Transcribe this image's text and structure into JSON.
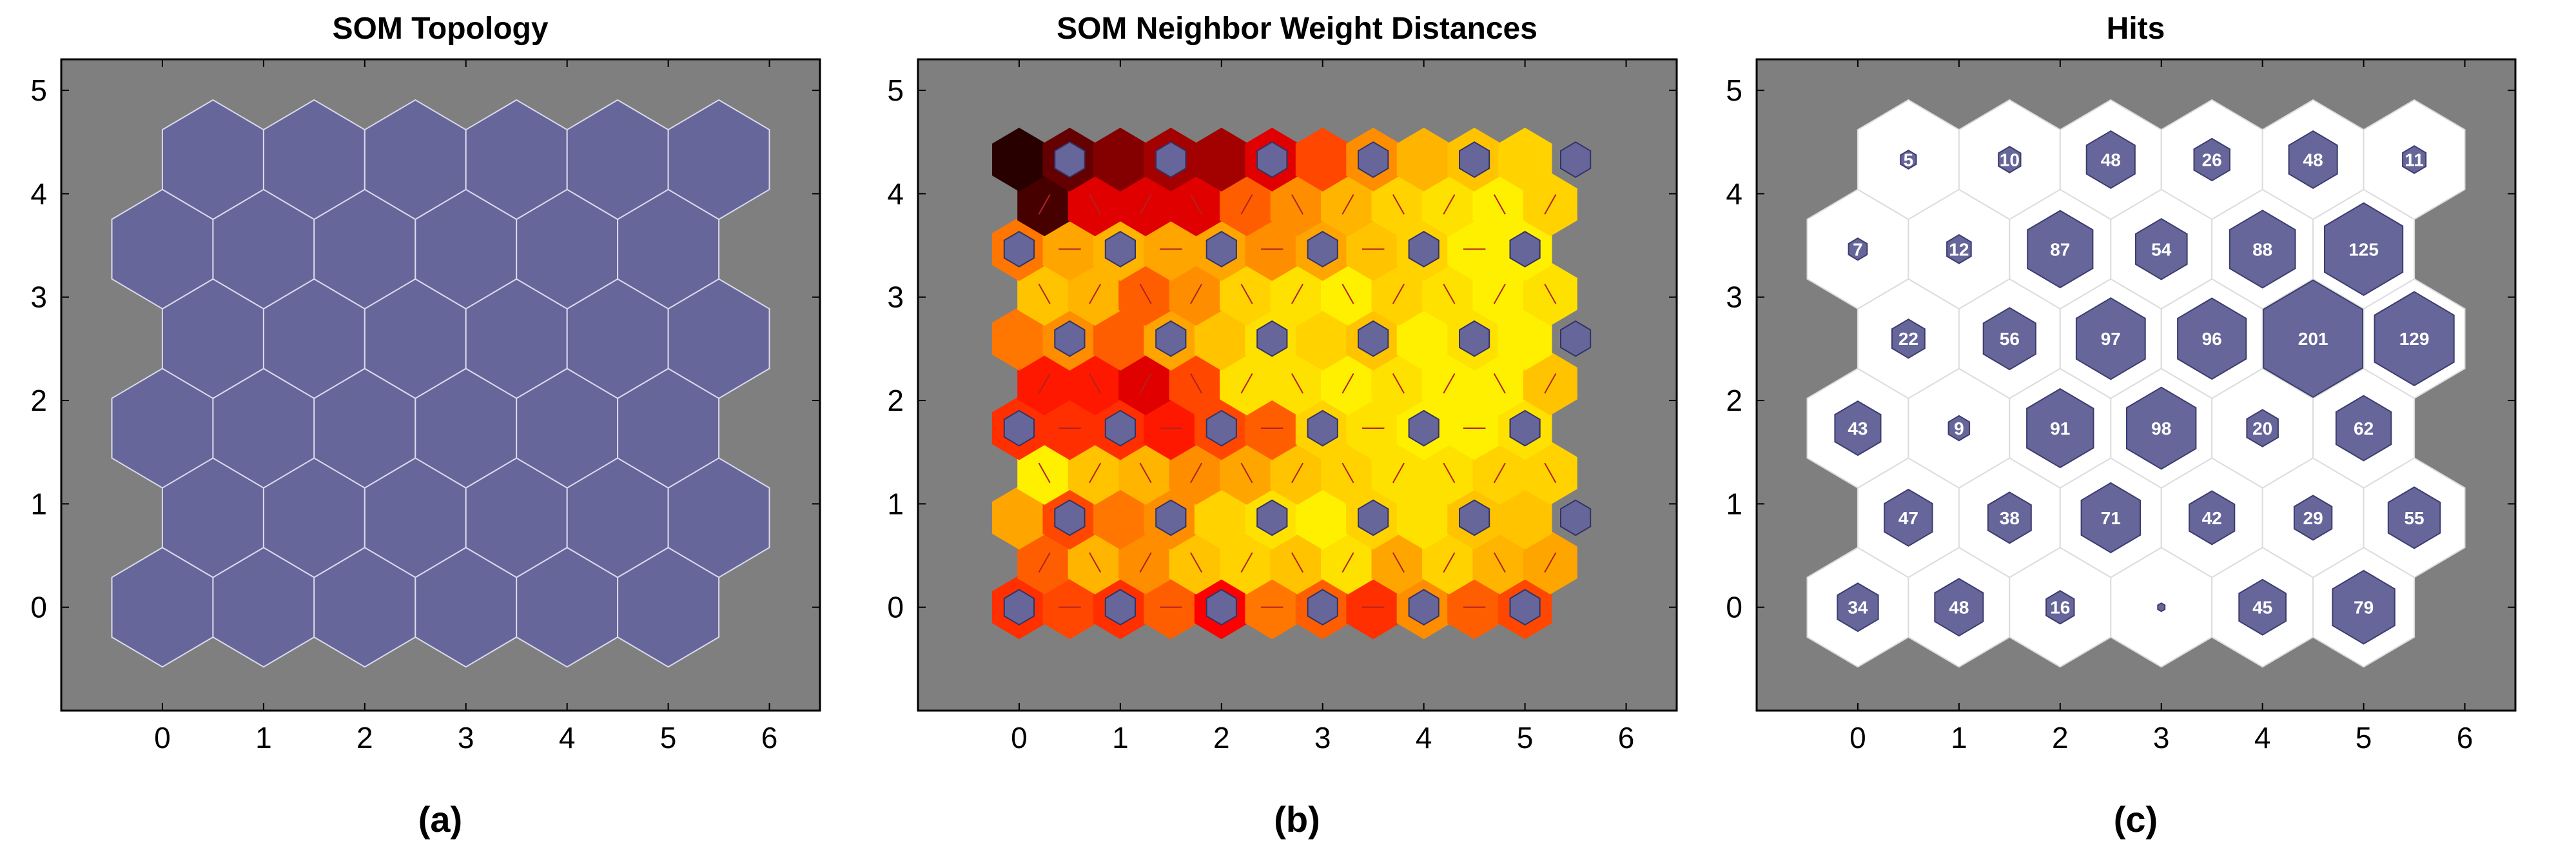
{
  "colors": {
    "background": "#7f7f7f",
    "neuron": "#66669a",
    "neuron_edge": "#d9d9ec",
    "hit_cell": "#ffffff",
    "hit_hex": "#66669a",
    "dist_link": "#b22222"
  },
  "chart_data": [
    {
      "type": "heatmap",
      "panel": "a",
      "title": "SOM Topology",
      "caption": "(a)",
      "xlim": [
        -1,
        6.5
      ],
      "ylim": [
        -1,
        5.3
      ],
      "xticks": [
        "0",
        "1",
        "2",
        "3",
        "4",
        "5",
        "6"
      ],
      "yticks": [
        "0",
        "1",
        "2",
        "3",
        "4",
        "5"
      ],
      "grid_size": [
        6,
        6
      ],
      "layout": "hexagonal"
    },
    {
      "type": "heatmap",
      "panel": "b",
      "title": "SOM Neighbor Weight Distances",
      "caption": "(b)",
      "xlim": [
        -1,
        6.5
      ],
      "ylim": [
        -1,
        5.3
      ],
      "xticks": [
        "0",
        "1",
        "2",
        "3",
        "4",
        "5",
        "6"
      ],
      "yticks": [
        "0",
        "1",
        "2",
        "3",
        "4",
        "5"
      ],
      "colormap": "hot (dark = far, light = close)",
      "distances": [
        [
          0.55,
          0.5,
          0.55,
          0.45,
          0.65,
          0.4,
          0.45,
          0.55,
          0.35,
          0.45,
          0.5
        ],
        [
          0.45,
          0.25,
          0.35,
          0.2,
          0.15,
          0.2,
          0.1,
          0.3,
          0.15,
          0.25,
          0.3
        ],
        [
          0.3,
          0.5,
          0.4,
          0.35,
          0.15,
          0.1,
          0.05,
          0.15,
          0.1,
          0.2,
          0.2
        ],
        [
          0.05,
          0.2,
          0.25,
          0.35,
          0.3,
          0.2,
          0.15,
          0.1,
          0.1,
          0.15,
          0.15
        ],
        [
          0.55,
          0.55,
          0.55,
          0.6,
          0.5,
          0.45,
          0.15,
          0.1,
          0.05,
          0.05,
          0.1
        ],
        [
          0.6,
          0.6,
          0.7,
          0.5,
          0.1,
          0.1,
          0.05,
          0.1,
          0.05,
          0.05,
          0.2
        ],
        [
          0.4,
          0.35,
          0.45,
          0.3,
          0.2,
          0.1,
          0.15,
          0.2,
          0.05,
          0.1,
          0.05
        ],
        [
          0.2,
          0.25,
          0.45,
          0.35,
          0.15,
          0.1,
          0.05,
          0.15,
          0.1,
          0.05,
          0.1
        ],
        [
          0.4,
          0.3,
          0.25,
          0.3,
          0.3,
          0.35,
          0.3,
          0.2,
          0.15,
          0.05,
          0.05
        ],
        [
          0.95,
          0.7,
          0.7,
          0.7,
          0.45,
          0.35,
          0.25,
          0.15,
          0.1,
          0.05,
          0.15
        ],
        [
          1.0,
          0.9,
          0.85,
          0.8,
          0.8,
          0.7,
          0.5,
          0.35,
          0.25,
          0.2,
          0.15
        ]
      ]
    },
    {
      "type": "heatmap",
      "panel": "c",
      "title": "Hits",
      "caption": "(c)",
      "xlim": [
        -1,
        6.5
      ],
      "ylim": [
        -1,
        5.3
      ],
      "xticks": [
        "0",
        "1",
        "2",
        "3",
        "4",
        "5",
        "6"
      ],
      "yticks": [
        "0",
        "1",
        "2",
        "3",
        "4",
        "5"
      ],
      "max_hits": 201,
      "hits": [
        [
          34,
          48,
          16,
          1,
          45,
          79
        ],
        [
          47,
          38,
          71,
          42,
          29,
          55
        ],
        [
          43,
          9,
          91,
          98,
          20,
          62
        ],
        [
          22,
          56,
          97,
          96,
          201,
          129
        ],
        [
          7,
          12,
          87,
          54,
          88,
          125
        ],
        [
          5,
          10,
          48,
          26,
          48,
          11
        ]
      ]
    }
  ]
}
